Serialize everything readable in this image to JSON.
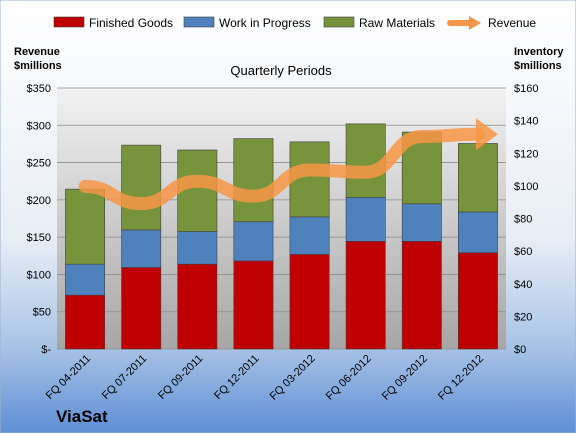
{
  "chart_data": {
    "type": "bar",
    "title": "Quarterly Periods",
    "company": "ViaSat",
    "left_axis_title": [
      "Revenue",
      "$millions"
    ],
    "right_axis_title": [
      "Inventory",
      "$millions"
    ],
    "categories": [
      "FQ 04-2011",
      "FQ 07-2011",
      "FQ 09-2011",
      "FQ 12-2011",
      "FQ 03-2012",
      "FQ 06-2012",
      "FQ 09-2012",
      "FQ 12-2012"
    ],
    "left_ticks": [
      "$-",
      "$50",
      "$100",
      "$150",
      "$200",
      "$250",
      "$300",
      "$350"
    ],
    "right_ticks": [
      "$0",
      "$20",
      "$40",
      "$60",
      "$80",
      "$100",
      "$120",
      "$140",
      "$160"
    ],
    "left_ylim": [
      0,
      350
    ],
    "right_ylim": [
      0,
      160
    ],
    "grid": true,
    "legend_position": "top",
    "stacked_axis": "right",
    "series": [
      {
        "name": "Finished Goods",
        "type": "bar",
        "color": "#c00000",
        "values": [
          33,
          50,
          52,
          54,
          58,
          66,
          66,
          59
        ]
      },
      {
        "name": "Work in Progress",
        "type": "bar",
        "color": "#4f81bd",
        "values": [
          19,
          23,
          20,
          24,
          23,
          27,
          23,
          25
        ]
      },
      {
        "name": "Raw Materials",
        "type": "bar",
        "color": "#77933c",
        "values": [
          46,
          52,
          50,
          51,
          46,
          45,
          44,
          42
        ]
      },
      {
        "name": "Revenue",
        "type": "line",
        "axis": "left",
        "color": "#f79646",
        "values": [
          218,
          195,
          225,
          205,
          240,
          237,
          285,
          288
        ]
      }
    ]
  }
}
